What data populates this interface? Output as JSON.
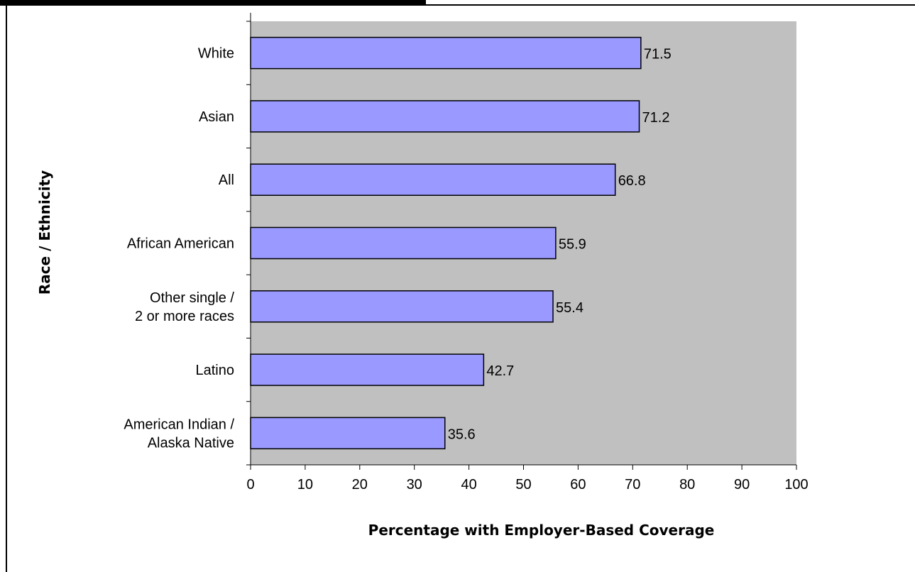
{
  "chart_data": {
    "type": "bar",
    "orientation": "horizontal",
    "categories": [
      [
        "White"
      ],
      [
        "Asian"
      ],
      [
        "All"
      ],
      [
        "African American"
      ],
      [
        "Other single /",
        "2 or more races"
      ],
      [
        "Latino"
      ],
      [
        "American Indian /",
        "Alaska Native"
      ]
    ],
    "values": [
      71.5,
      71.2,
      66.8,
      55.9,
      55.4,
      42.7,
      35.6
    ],
    "value_labels": [
      "71.5",
      "71.2",
      "66.8",
      "55.9",
      "55.4",
      "42.7",
      "35.6"
    ],
    "xlabel": "Percentage with Employer-Based Coverage",
    "ylabel": "Race / Ethnicity",
    "xlim": [
      0,
      100
    ],
    "xticks": [
      "0",
      "10",
      "20",
      "30",
      "40",
      "50",
      "60",
      "70",
      "80",
      "90",
      "100"
    ],
    "grid": false,
    "colors": {
      "bar_fill": "#9999ff",
      "bar_stroke": "#000000",
      "plot_background": "#c0c0c0"
    }
  }
}
